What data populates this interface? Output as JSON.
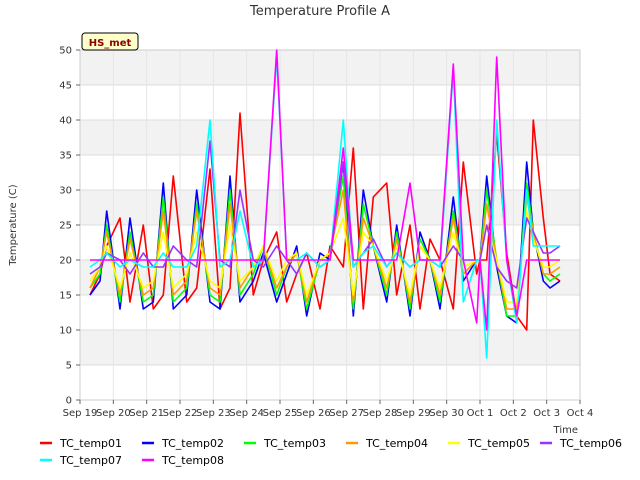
{
  "chart_data": {
    "type": "line",
    "title": "Temperature Profile A",
    "xlabel": "Time",
    "ylabel": "Temperature (C)",
    "badge": "HS_met",
    "ylim": [
      0,
      50
    ],
    "yticks": [
      0,
      5,
      10,
      15,
      20,
      25,
      30,
      35,
      40,
      45,
      50
    ],
    "xlim": [
      19,
      34
    ],
    "xticks": [
      {
        "v": 19,
        "label": "Sep 19"
      },
      {
        "v": 20,
        "label": "Sep 20"
      },
      {
        "v": 21,
        "label": "Sep 21"
      },
      {
        "v": 22,
        "label": "Sep 22"
      },
      {
        "v": 23,
        "label": "Sep 23"
      },
      {
        "v": 24,
        "label": "Sep 24"
      },
      {
        "v": 25,
        "label": "Sep 25"
      },
      {
        "v": 26,
        "label": "Sep 26"
      },
      {
        "v": 27,
        "label": "Sep 27"
      },
      {
        "v": 28,
        "label": "Sep 28"
      },
      {
        "v": 29,
        "label": "Sep 29"
      },
      {
        "v": 30,
        "label": "Sep 30"
      },
      {
        "v": 31,
        "label": "Oct 1"
      },
      {
        "v": 32,
        "label": "Oct 2"
      },
      {
        "v": 33,
        "label": "Oct 3"
      },
      {
        "v": 34,
        "label": "Oct 4"
      }
    ],
    "grid": "horizontal bands",
    "legend_position": "bottom",
    "series": [
      {
        "name": "TC_temp01",
        "color": "#ff0000",
        "x": [
          19.3,
          19.6,
          19.8,
          20.2,
          20.5,
          20.9,
          21.2,
          21.5,
          21.8,
          22.2,
          22.5,
          22.9,
          23.2,
          23.5,
          23.8,
          24.2,
          24.5,
          24.9,
          25.2,
          25.5,
          25.8,
          26.2,
          26.5,
          26.9,
          27.2,
          27.5,
          27.8,
          28.2,
          28.5,
          28.9,
          29.2,
          29.5,
          29.8,
          30.2,
          30.5,
          30.9,
          31.0,
          31.2,
          31.5,
          31.8,
          32.1,
          32.4,
          32.6,
          32.9,
          33.1,
          33.4
        ],
        "y": [
          15,
          18,
          22,
          26,
          14,
          25,
          13,
          15,
          32,
          14,
          16,
          33,
          13,
          16,
          41,
          15,
          20,
          24,
          14,
          18,
          21,
          13,
          22,
          19,
          36,
          13,
          29,
          31,
          15,
          25,
          13,
          23,
          20,
          13,
          34,
          18,
          20,
          20,
          38,
          21,
          12,
          10,
          40,
          26,
          18,
          17
        ]
      },
      {
        "name": "TC_temp02",
        "color": "#0000ff",
        "x": [
          19.3,
          19.6,
          19.8,
          20.2,
          20.5,
          20.9,
          21.2,
          21.5,
          21.8,
          22.2,
          22.5,
          22.9,
          23.2,
          23.5,
          23.8,
          24.2,
          24.5,
          24.9,
          25.2,
          25.5,
          25.8,
          26.2,
          26.5,
          26.9,
          27.2,
          27.5,
          27.8,
          28.2,
          28.5,
          28.9,
          29.2,
          29.5,
          29.8,
          30.2,
          30.5,
          30.9,
          31.0,
          31.2,
          31.5,
          31.8,
          32.1,
          32.4,
          32.6,
          32.9,
          33.1,
          33.4
        ],
        "y": [
          15,
          17,
          27,
          13,
          26,
          13,
          14,
          31,
          13,
          15,
          30,
          14,
          13,
          32,
          14,
          17,
          21,
          14,
          18,
          22,
          12,
          21,
          20,
          34,
          12,
          30,
          22,
          14,
          25,
          12,
          24,
          20,
          13,
          29,
          17,
          20,
          20,
          32,
          19,
          12,
          11,
          34,
          24,
          17,
          16,
          17
        ]
      },
      {
        "name": "TC_temp03",
        "color": "#00ff00",
        "x": [
          19.3,
          19.6,
          19.8,
          20.2,
          20.5,
          20.9,
          21.2,
          21.5,
          21.8,
          22.2,
          22.5,
          22.9,
          23.2,
          23.5,
          23.8,
          24.2,
          24.5,
          24.9,
          25.2,
          25.5,
          25.8,
          26.2,
          26.5,
          26.9,
          27.2,
          27.5,
          27.8,
          28.2,
          28.5,
          28.9,
          29.2,
          29.5,
          29.8,
          30.2,
          30.5,
          30.9,
          31.0,
          31.2,
          31.5,
          31.8,
          32.1,
          32.4,
          32.6,
          32.9,
          33.1,
          33.4
        ],
        "y": [
          16,
          18,
          25,
          14,
          24,
          14,
          15,
          29,
          14,
          16,
          28,
          15,
          14,
          30,
          15,
          18,
          22,
          15,
          19,
          21,
          13,
          20,
          21,
          32,
          13,
          28,
          22,
          15,
          24,
          13,
          23,
          20,
          14,
          27,
          18,
          20,
          20,
          30,
          20,
          12,
          12,
          31,
          24,
          18,
          17,
          18
        ]
      },
      {
        "name": "TC_temp04",
        "color": "#ff9900",
        "x": [
          19.3,
          19.6,
          19.8,
          20.2,
          20.5,
          20.9,
          21.2,
          21.5,
          21.8,
          22.2,
          22.5,
          22.9,
          23.2,
          23.5,
          23.8,
          24.2,
          24.5,
          24.9,
          25.2,
          25.5,
          25.8,
          26.2,
          26.5,
          26.9,
          27.2,
          27.5,
          27.8,
          28.2,
          28.5,
          28.9,
          29.2,
          29.5,
          29.8,
          30.2,
          30.5,
          30.9,
          31.0,
          31.2,
          31.5,
          31.8,
          32.1,
          32.4,
          32.6,
          32.9,
          33.1,
          33.4
        ],
        "y": [
          16,
          19,
          24,
          15,
          23,
          15,
          16,
          27,
          15,
          17,
          27,
          16,
          15,
          28,
          16,
          19,
          22,
          16,
          19,
          21,
          14,
          20,
          21,
          30,
          14,
          26,
          22,
          16,
          23,
          14,
          22,
          20,
          15,
          26,
          18,
          20,
          20,
          28,
          20,
          13,
          13,
          29,
          24,
          18,
          18,
          19
        ]
      },
      {
        "name": "TC_temp05",
        "color": "#ffff00",
        "x": [
          19.3,
          19.6,
          19.8,
          20.2,
          20.5,
          20.9,
          21.2,
          21.5,
          21.8,
          22.2,
          22.5,
          22.9,
          23.2,
          23.5,
          23.8,
          24.2,
          24.5,
          24.9,
          25.2,
          25.5,
          25.8,
          26.2,
          26.5,
          26.9,
          27.2,
          27.5,
          27.8,
          28.2,
          28.5,
          28.9,
          29.2,
          29.5,
          29.8,
          30.2,
          30.5,
          30.9,
          31.0,
          31.2,
          31.5,
          31.8,
          32.1,
          32.4,
          32.6,
          32.9,
          33.1,
          33.4
        ],
        "y": [
          17,
          19,
          22,
          16,
          21,
          16,
          17,
          24,
          16,
          18,
          24,
          17,
          16,
          25,
          17,
          19,
          22,
          17,
          20,
          21,
          15,
          20,
          21,
          26,
          15,
          24,
          22,
          17,
          22,
          15,
          22,
          20,
          16,
          24,
          19,
          20,
          20,
          25,
          20,
          14,
          14,
          27,
          23,
          19,
          19,
          20
        ]
      },
      {
        "name": "TC_temp06",
        "color": "#9933ff",
        "x": [
          19.3,
          19.6,
          19.8,
          20.2,
          20.5,
          20.9,
          21.2,
          21.5,
          21.8,
          22.2,
          22.5,
          22.9,
          23.2,
          23.5,
          23.8,
          24.2,
          24.5,
          24.9,
          25.2,
          25.5,
          25.8,
          26.2,
          26.5,
          26.9,
          27.2,
          27.5,
          27.8,
          28.2,
          28.5,
          28.9,
          29.2,
          29.5,
          29.8,
          30.2,
          30.5,
          30.9,
          31.0,
          31.2,
          31.5,
          31.8,
          32.1,
          32.4,
          32.6,
          32.9,
          33.1,
          33.4
        ],
        "y": [
          18,
          19,
          21,
          20,
          18,
          21,
          19,
          19,
          22,
          20,
          19,
          37,
          20,
          19,
          30,
          20,
          19,
          22,
          20,
          18,
          21,
          19,
          20,
          34,
          19,
          21,
          23,
          19,
          21,
          19,
          20,
          20,
          19,
          22,
          20,
          20,
          20,
          25,
          19,
          17,
          16,
          26,
          24,
          21,
          21,
          22
        ]
      },
      {
        "name": "TC_temp07",
        "color": "#00ffff",
        "x": [
          19.3,
          19.6,
          19.8,
          20.2,
          20.5,
          20.9,
          21.2,
          21.5,
          21.8,
          22.2,
          22.5,
          22.9,
          23.2,
          23.5,
          23.8,
          24.2,
          24.5,
          24.9,
          25.2,
          25.5,
          25.8,
          26.2,
          26.5,
          26.9,
          27.2,
          27.5,
          27.8,
          28.2,
          28.5,
          28.9,
          29.2,
          29.5,
          29.8,
          30.2,
          30.5,
          30.9,
          31.0,
          31.2,
          31.5,
          31.8,
          32.1,
          32.4,
          32.6,
          32.9,
          33.1,
          33.4
        ],
        "y": [
          19,
          20,
          21,
          19,
          20,
          19,
          19,
          21,
          19,
          19,
          22,
          40,
          19,
          20,
          27,
          19,
          20,
          49,
          20,
          20,
          21,
          19,
          20,
          40,
          19,
          21,
          22,
          19,
          21,
          19,
          20,
          20,
          19,
          47,
          14,
          20,
          20,
          6,
          40,
          20,
          11,
          30,
          22,
          22,
          22,
          22
        ]
      },
      {
        "name": "TC_temp08",
        "color": "#ff00ff",
        "x": [
          19.3,
          19.6,
          19.8,
          20.2,
          20.5,
          20.9,
          21.2,
          21.5,
          21.8,
          22.2,
          22.5,
          22.9,
          23.2,
          23.5,
          23.8,
          24.2,
          24.5,
          24.9,
          25.2,
          25.5,
          25.8,
          26.2,
          26.5,
          26.9,
          27.2,
          27.5,
          27.8,
          28.2,
          28.5,
          28.9,
          29.2,
          29.5,
          29.8,
          30.2,
          30.5,
          30.9,
          31.0,
          31.2,
          31.5,
          31.8,
          32.1,
          32.4,
          32.6,
          32.9,
          33.1,
          33.4
        ],
        "y": [
          20,
          20,
          20,
          20,
          20,
          20,
          20,
          20,
          20,
          20,
          20,
          20,
          20,
          20,
          20,
          20,
          20,
          50,
          20,
          20,
          20,
          20,
          20,
          36,
          20,
          20,
          20,
          20,
          20,
          31,
          20,
          20,
          20,
          48,
          20,
          11,
          20,
          10,
          49,
          20,
          12,
          20,
          20,
          20,
          20,
          20
        ]
      }
    ]
  }
}
